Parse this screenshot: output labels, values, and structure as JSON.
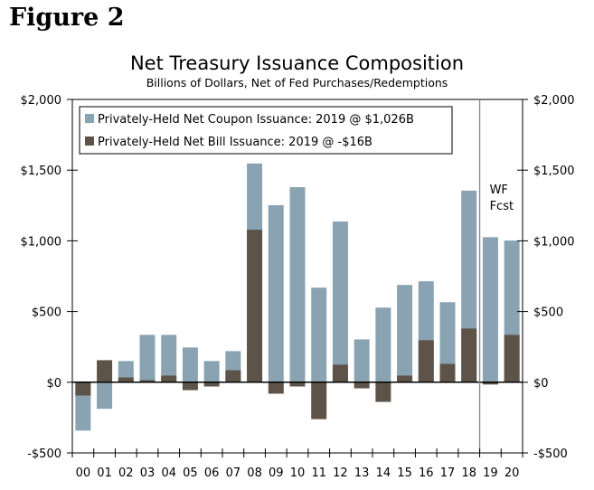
{
  "figure_label": "Figure 2",
  "chart_data": {
    "type": "bar",
    "title": "Net Treasury Issuance Composition",
    "subtitle": "Billions of Dollars, Net of Fed Purchases/Redemptions",
    "categories": [
      "00",
      "01",
      "02",
      "03",
      "04",
      "05",
      "06",
      "07",
      "08",
      "09",
      "10",
      "11",
      "12",
      "13",
      "14",
      "15",
      "16",
      "17",
      "18",
      "19",
      "20"
    ],
    "series": [
      {
        "name": "Privately-Held Net Coupon Issuance: 2019 @ $1,026B",
        "color": "#8aa3b2",
        "values": [
          -342,
          -188,
          150,
          335,
          335,
          246,
          150,
          220,
          1547,
          1252,
          1380,
          669,
          1137,
          303,
          528,
          688,
          714,
          566,
          1355,
          1026,
          1002
        ]
      },
      {
        "name": "Privately-Held Net Bill Issuance: 2019 @ -$16B",
        "color": "#5e5348",
        "values": [
          -94,
          156,
          34,
          15,
          47,
          -56,
          -30,
          85,
          1079,
          -81,
          -30,
          -261,
          124,
          -43,
          -139,
          47,
          297,
          130,
          380,
          -16,
          335
        ]
      }
    ],
    "ylim": [
      -500,
      2000
    ],
    "yticks": [
      -500,
      0,
      500,
      1000,
      1500,
      2000
    ],
    "ytick_labels": [
      "-$500",
      "$0",
      "$500",
      "$1,000",
      "$1,500",
      "$2,000"
    ],
    "annotation": "WF Fcst",
    "annotation_lines": [
      "WF",
      "Fcst"
    ],
    "forecast_start": "19",
    "legend": "top-left",
    "grid": false
  }
}
